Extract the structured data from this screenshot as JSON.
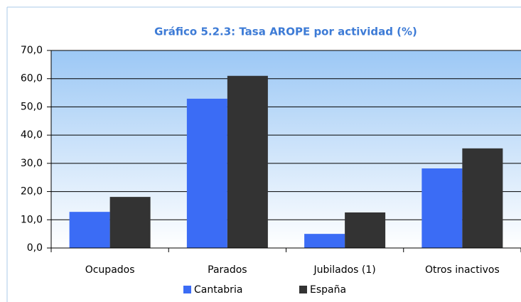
{
  "chart_data": {
    "type": "bar",
    "title": "Gráfico 5.2.3: Tasa AROPE por actividad (%)",
    "categories": [
      "Ocupados",
      "Parados",
      "Jubilados (1)",
      "Otros inactivos"
    ],
    "series": [
      {
        "name": "Cantabria",
        "color": "#3b6cf5",
        "values": [
          12.8,
          52.9,
          5.0,
          28.2
        ]
      },
      {
        "name": "España",
        "color": "#333333",
        "values": [
          18.1,
          61.0,
          12.6,
          35.3
        ]
      }
    ],
    "ylim": [
      0,
      70
    ],
    "yticks": [
      {
        "value": 0,
        "label": "0,0"
      },
      {
        "value": 10,
        "label": "10,0"
      },
      {
        "value": 20,
        "label": "20,0"
      },
      {
        "value": 30,
        "label": "30,0"
      },
      {
        "value": 40,
        "label": "40,0"
      },
      {
        "value": 50,
        "label": "50,0"
      },
      {
        "value": 60,
        "label": "60,0"
      },
      {
        "value": 70,
        "label": "70,0"
      }
    ],
    "grid": true,
    "legend": "bottom"
  }
}
